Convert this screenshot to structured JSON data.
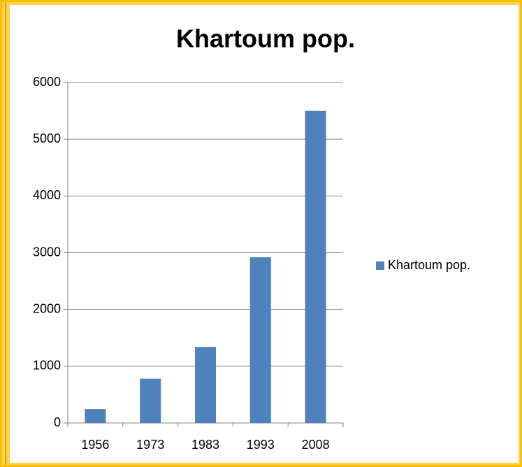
{
  "chart_data": {
    "type": "bar",
    "title": "Khartoum pop.",
    "categories": [
      "1956",
      "1973",
      "1983",
      "1993",
      "2008"
    ],
    "series": [
      {
        "name": "Khartoum pop.",
        "color": "#4f81bd",
        "values": [
          245,
          780,
          1340,
          2920,
          5500
        ]
      }
    ],
    "ylim": [
      0,
      6000
    ],
    "yticks": [
      0,
      1000,
      2000,
      3000,
      4000,
      5000,
      6000
    ],
    "grid": true,
    "legend": "right"
  }
}
